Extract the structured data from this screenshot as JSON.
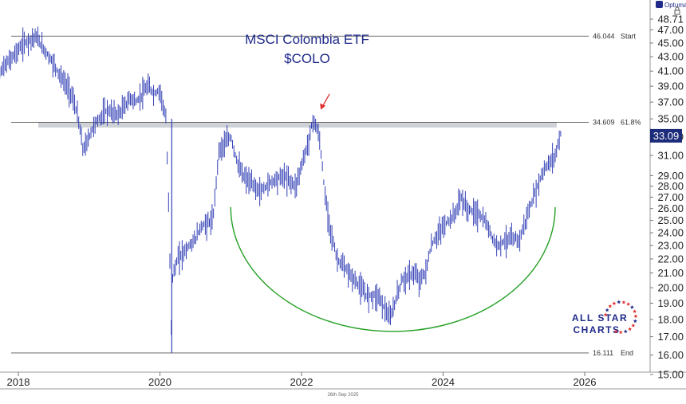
{
  "chart_data": {
    "type": "bar",
    "style": "ohlc",
    "title": "MSCI Colombia ETF",
    "subtitle": "$COLO",
    "xlabel": "",
    "ylabel": "",
    "y_scale": "log",
    "ylim": [
      15.0,
      48.71
    ],
    "xlim": [
      "2017-07-01",
      "2026-12-31"
    ],
    "x_ticks": [
      "2018",
      "2020",
      "2022",
      "2024",
      "2026"
    ],
    "y_ticks": [
      "15.00",
      "16.00",
      "17.00",
      "18.00",
      "19.00",
      "20.00",
      "21.00",
      "22.00",
      "23.00",
      "24.00",
      "25.00",
      "26.00",
      "27.00",
      "28.00",
      "29.00",
      "31.00",
      "33.00",
      "35.00",
      "37.00",
      "39.00",
      "41.00",
      "43.00",
      "45.00",
      "47.00",
      "48.71"
    ],
    "last_price": "33.09",
    "last_price_value": 33.09,
    "footer_date": "26th Sep 2025",
    "grid": false,
    "levels": [
      {
        "value": 46.044,
        "price_label": "46.044",
        "tag": "Start"
      },
      {
        "value": 34.609,
        "price_label": "34.609",
        "tag": "61.8%"
      },
      {
        "value": 16.111,
        "price_label": "16.111",
        "tag": "End"
      }
    ],
    "resistance_zone": [
      34.0,
      34.609
    ],
    "series": [
      {
        "name": "COLO",
        "x": [
          "2017-08",
          "2017-10",
          "2017-12",
          "2018-02",
          "2018-04",
          "2018-05",
          "2018-07",
          "2018-08",
          "2018-10",
          "2018-11",
          "2018-12",
          "2019-02",
          "2019-04",
          "2019-06",
          "2019-08",
          "2019-09",
          "2019-11",
          "2019-12",
          "2020-01",
          "2020-02",
          "2020-03",
          "2020-03",
          "2020-04",
          "2020-05",
          "2020-07",
          "2020-08",
          "2020-10",
          "2020-11",
          "2021-01",
          "2021-02",
          "2021-03",
          "2021-05",
          "2021-06",
          "2021-08",
          "2021-10",
          "2021-12",
          "2022-02",
          "2022-03",
          "2022-04",
          "2022-05",
          "2022-06",
          "2022-07",
          "2022-08",
          "2022-10",
          "2022-11",
          "2022-12",
          "2023-02",
          "2023-04",
          "2023-06",
          "2023-08",
          "2023-09",
          "2023-10",
          "2023-11",
          "2024-01",
          "2024-03",
          "2024-04",
          "2024-05",
          "2024-07",
          "2024-08",
          "2024-10",
          "2024-12",
          "2025-02",
          "2025-03",
          "2025-04",
          "2025-05",
          "2025-06",
          "2025-08",
          "2025-09"
        ],
        "values": [
          39.5,
          41.0,
          43.0,
          45.0,
          46.0,
          44.5,
          42.0,
          40.5,
          38.0,
          35.5,
          31.5,
          34.5,
          36.0,
          35.5,
          37.5,
          37.0,
          39.0,
          38.0,
          38.5,
          35.0,
          16.2,
          20.5,
          22.0,
          22.5,
          23.5,
          24.5,
          25.0,
          31.5,
          33.0,
          30.5,
          29.0,
          28.0,
          27.5,
          28.5,
          29.0,
          28.0,
          32.0,
          35.0,
          33.0,
          27.0,
          24.0,
          22.0,
          21.5,
          20.5,
          20.0,
          19.5,
          19.5,
          18.0,
          20.5,
          21.0,
          20.5,
          21.0,
          23.0,
          24.5,
          25.5,
          27.0,
          26.0,
          25.5,
          25.0,
          23.0,
          23.5,
          23.5,
          25.0,
          26.5,
          28.0,
          29.5,
          31.0,
          33.5
        ]
      }
    ],
    "annotations": [
      {
        "type": "arrow",
        "color": "#e03131",
        "at": "2022-04",
        "value": 35.5,
        "direction": "down-left"
      },
      {
        "type": "arc",
        "color": "#23a023",
        "shape": "rounding-bottom",
        "from": "2021-01",
        "to": "2025-08",
        "bottom_value": 17.3
      }
    ],
    "colors": {
      "bars": "#3340b5",
      "title": "#1f2a8a",
      "last_price_bg": "#1c2b7a",
      "last_price_fg": "#ffffff",
      "zone": "#c9ccd1",
      "level_line": "#555555",
      "arc": "#23a023",
      "arrow": "#e03131",
      "logo_text": "#1f2a8a",
      "logo_star": "#e03131"
    },
    "watermark": {
      "line1": "ALL STAR",
      "line2": "CHARTS"
    },
    "vendor_badge": "Optuma"
  }
}
